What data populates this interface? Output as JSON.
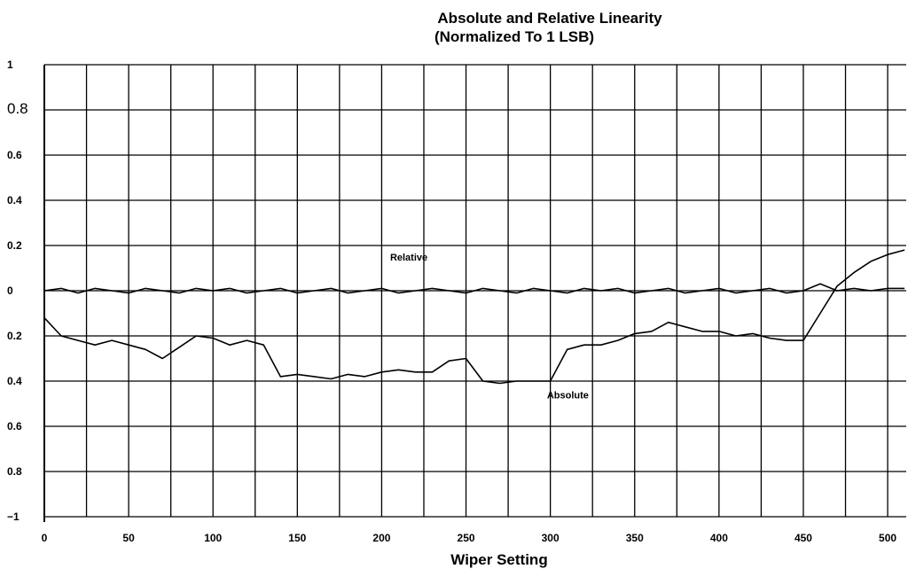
{
  "chart_data": {
    "type": "line",
    "title": "Absolute and Relative Linearity",
    "subtitle": "(Normalized To 1 LSB)",
    "xlabel": "Wiper Setting",
    "ylabel": "",
    "xlim": [
      0,
      511
    ],
    "ylim": [
      -1,
      1
    ],
    "grid": true,
    "x_ticks": [
      "0",
      "50",
      "100",
      "150",
      "200",
      "250",
      "300",
      "350",
      "400",
      "450",
      "500"
    ],
    "y_ticks": [
      "1",
      "0.8",
      "0.6",
      "0.4",
      "0.2",
      "0",
      "0.2",
      "0.4",
      "0.6",
      "0.8",
      "−1"
    ],
    "annotations": [
      {
        "text": "Relative",
        "x": 205,
        "y": 0.15
      },
      {
        "text": "Absolute",
        "x": 298,
        "y": -0.46
      }
    ],
    "series": [
      {
        "name": "Relative",
        "x": [
          0,
          10,
          20,
          30,
          40,
          50,
          60,
          70,
          80,
          90,
          100,
          110,
          120,
          130,
          140,
          150,
          160,
          170,
          180,
          190,
          200,
          210,
          220,
          230,
          240,
          250,
          260,
          270,
          280,
          290,
          300,
          310,
          320,
          330,
          340,
          350,
          360,
          370,
          380,
          390,
          400,
          410,
          420,
          430,
          440,
          450,
          460,
          470,
          480,
          490,
          500,
          510
        ],
        "y": [
          0.0,
          0.01,
          -0.01,
          0.01,
          0.0,
          -0.01,
          0.01,
          0.0,
          -0.01,
          0.01,
          0.0,
          0.01,
          -0.01,
          0.0,
          0.01,
          -0.01,
          0.0,
          0.01,
          -0.01,
          0.0,
          0.01,
          -0.01,
          0.0,
          0.01,
          0.0,
          -0.01,
          0.01,
          0.0,
          -0.01,
          0.01,
          0.0,
          -0.01,
          0.01,
          0.0,
          0.01,
          -0.01,
          0.0,
          0.01,
          -0.01,
          0.0,
          0.01,
          -0.01,
          0.0,
          0.01,
          -0.01,
          0.0,
          0.03,
          0.0,
          0.01,
          0.0,
          0.01,
          0.01
        ]
      },
      {
        "name": "Absolute",
        "x": [
          0,
          10,
          20,
          30,
          40,
          50,
          60,
          70,
          80,
          90,
          100,
          110,
          120,
          130,
          140,
          150,
          160,
          170,
          180,
          190,
          200,
          210,
          220,
          230,
          240,
          250,
          260,
          270,
          280,
          290,
          300,
          310,
          320,
          330,
          340,
          350,
          360,
          370,
          380,
          390,
          400,
          410,
          420,
          430,
          440,
          450,
          460,
          470,
          480,
          490,
          500,
          510
        ],
        "y": [
          -0.12,
          -0.2,
          -0.22,
          -0.24,
          -0.22,
          -0.24,
          -0.26,
          -0.3,
          -0.25,
          -0.2,
          -0.21,
          -0.24,
          -0.22,
          -0.24,
          -0.38,
          -0.37,
          -0.38,
          -0.39,
          -0.37,
          -0.38,
          -0.36,
          -0.35,
          -0.36,
          -0.36,
          -0.31,
          -0.3,
          -0.4,
          -0.41,
          -0.4,
          -0.4,
          -0.4,
          -0.26,
          -0.24,
          -0.24,
          -0.22,
          -0.19,
          -0.18,
          -0.14,
          -0.16,
          -0.18,
          -0.18,
          -0.2,
          -0.19,
          -0.21,
          -0.22,
          -0.22,
          -0.1,
          0.02,
          0.08,
          0.13,
          0.16,
          0.18
        ]
      }
    ]
  }
}
